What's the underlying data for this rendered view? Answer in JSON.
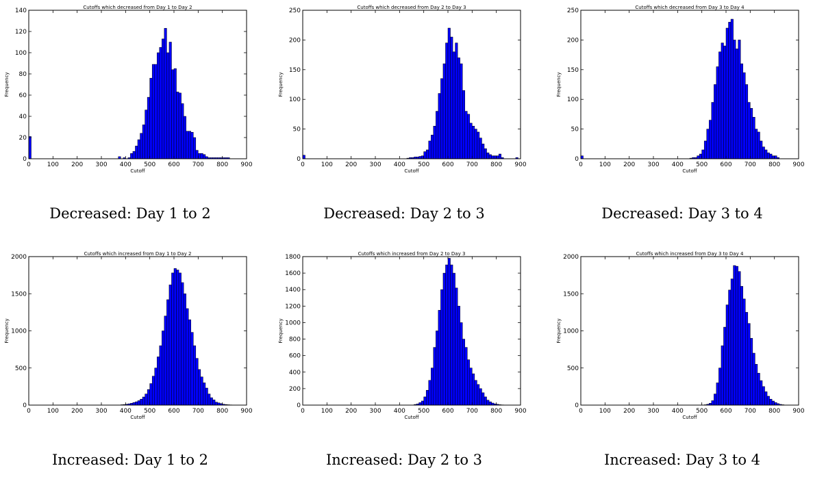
{
  "chart_data": [
    {
      "type": "bar",
      "title": "Cutoffs which decreased from Day 1 to Day 2",
      "xlabel": "Cutoff",
      "ylabel": "Frequency",
      "caption": "Decreased: Day 1 to 2",
      "xlim": [
        0,
        900
      ],
      "ylim": [
        0,
        140
      ],
      "xticks": [
        0,
        100,
        200,
        300,
        400,
        500,
        600,
        700,
        800,
        900
      ],
      "yticks": [
        0,
        20,
        40,
        60,
        80,
        100,
        120,
        140
      ],
      "bin_width": 10,
      "bin_starts": [
        0,
        370,
        390,
        410,
        420,
        430,
        440,
        450,
        460,
        470,
        480,
        490,
        500,
        510,
        520,
        530,
        540,
        550,
        560,
        570,
        580,
        590,
        600,
        610,
        620,
        630,
        640,
        650,
        660,
        670,
        680,
        690,
        700,
        710,
        720,
        730,
        740,
        750,
        760,
        770,
        780,
        790,
        800,
        810,
        820
      ],
      "values": [
        21,
        2,
        1,
        1,
        5,
        7,
        12,
        18,
        24,
        32,
        46,
        58,
        76,
        89,
        89,
        100,
        105,
        113,
        123,
        100,
        110,
        84,
        85,
        63,
        62,
        52,
        40,
        26,
        26,
        25,
        20,
        8,
        5,
        5,
        4,
        2,
        1,
        1,
        1,
        1,
        1,
        1,
        1,
        1,
        1
      ],
      "colors": {
        "bar": "#0000ff",
        "edge": "#000000"
      }
    },
    {
      "type": "bar",
      "title": "Cutoffs which decreased from Day 2 to Day 3",
      "xlabel": "Cutoff",
      "ylabel": "Frequency",
      "caption": "Decreased: Day 2 to 3",
      "xlim": [
        0,
        900
      ],
      "ylim": [
        0,
        250
      ],
      "xticks": [
        0,
        100,
        200,
        300,
        400,
        500,
        600,
        700,
        800,
        900
      ],
      "yticks": [
        0,
        50,
        100,
        150,
        200,
        250
      ],
      "bin_width": 10,
      "bin_starts": [
        0,
        430,
        440,
        450,
        460,
        470,
        480,
        490,
        500,
        510,
        520,
        530,
        540,
        550,
        560,
        570,
        580,
        590,
        600,
        610,
        620,
        630,
        640,
        650,
        660,
        670,
        680,
        690,
        700,
        710,
        720,
        730,
        740,
        750,
        760,
        770,
        780,
        790,
        800,
        810,
        820,
        880
      ],
      "values": [
        6,
        1,
        2,
        2,
        3,
        3,
        4,
        5,
        12,
        15,
        30,
        40,
        55,
        80,
        110,
        135,
        160,
        195,
        220,
        205,
        180,
        195,
        170,
        160,
        115,
        80,
        75,
        60,
        55,
        50,
        45,
        35,
        25,
        17,
        10,
        7,
        5,
        5,
        5,
        8,
        2,
        2
      ],
      "colors": {
        "bar": "#0000ff",
        "edge": "#000000"
      }
    },
    {
      "type": "bar",
      "title": "Cutoffs which decreased from Day 3 to Day 4",
      "xlabel": "Cutoff",
      "ylabel": "Frequency",
      "caption": "Decreased: Day 3 to 4",
      "xlim": [
        0,
        900
      ],
      "ylim": [
        0,
        250
      ],
      "xticks": [
        0,
        100,
        200,
        300,
        400,
        500,
        600,
        700,
        800,
        900
      ],
      "yticks": [
        0,
        50,
        100,
        150,
        200,
        250
      ],
      "bin_width": 10,
      "bin_starts": [
        0,
        450,
        460,
        470,
        480,
        490,
        500,
        510,
        520,
        530,
        540,
        550,
        560,
        570,
        580,
        590,
        600,
        610,
        620,
        630,
        640,
        650,
        660,
        670,
        680,
        690,
        700,
        710,
        720,
        730,
        740,
        750,
        760,
        770,
        780,
        790,
        800,
        810
      ],
      "values": [
        5,
        1,
        2,
        2,
        5,
        8,
        15,
        30,
        50,
        65,
        95,
        125,
        155,
        180,
        195,
        190,
        220,
        230,
        235,
        200,
        185,
        200,
        160,
        145,
        125,
        95,
        85,
        70,
        50,
        45,
        30,
        20,
        15,
        10,
        8,
        5,
        5,
        2
      ],
      "colors": {
        "bar": "#0000ff",
        "edge": "#000000"
      }
    },
    {
      "type": "bar",
      "title": "Cutoffs which increased from Day 1 to Day 2",
      "xlabel": "Cutoff",
      "ylabel": "Frequency",
      "caption": "Increased: Day 1 to 2",
      "xlim": [
        0,
        900
      ],
      "ylim": [
        0,
        2000
      ],
      "xticks": [
        0,
        100,
        200,
        300,
        400,
        500,
        600,
        700,
        800,
        900
      ],
      "yticks": [
        0,
        500,
        1000,
        1500,
        2000
      ],
      "bin_width": 10,
      "bin_starts": [
        380,
        390,
        400,
        410,
        420,
        430,
        440,
        450,
        460,
        470,
        480,
        490,
        500,
        510,
        520,
        530,
        540,
        550,
        560,
        570,
        580,
        590,
        600,
        610,
        620,
        630,
        640,
        650,
        660,
        670,
        680,
        690,
        700,
        710,
        720,
        730,
        740,
        750,
        760,
        770,
        780,
        790,
        800,
        810,
        820,
        830,
        840
      ],
      "values": [
        5,
        8,
        12,
        18,
        25,
        35,
        45,
        60,
        80,
        110,
        150,
        210,
        290,
        390,
        500,
        650,
        800,
        1000,
        1200,
        1420,
        1620,
        1780,
        1840,
        1820,
        1780,
        1650,
        1500,
        1300,
        1150,
        980,
        800,
        630,
        480,
        380,
        300,
        230,
        150,
        100,
        70,
        40,
        30,
        20,
        12,
        8,
        5,
        3,
        2
      ],
      "colors": {
        "bar": "#0000ff",
        "edge": "#000000"
      }
    },
    {
      "type": "bar",
      "title": "Cutoffs which increased from Day 2 to Day 3",
      "xlabel": "Cutoff",
      "ylabel": "Frequency",
      "caption": "Increased: Day 2 to 3",
      "xlim": [
        0,
        900
      ],
      "ylim": [
        0,
        1800
      ],
      "xticks": [
        0,
        100,
        200,
        300,
        400,
        500,
        600,
        700,
        800,
        900
      ],
      "yticks": [
        0,
        200,
        400,
        600,
        800,
        1000,
        1200,
        1400,
        1600,
        1800
      ],
      "bin_width": 10,
      "bin_starts": [
        460,
        470,
        480,
        490,
        500,
        510,
        520,
        530,
        540,
        550,
        560,
        570,
        580,
        590,
        600,
        610,
        620,
        630,
        640,
        650,
        660,
        670,
        680,
        690,
        700,
        710,
        720,
        730,
        740,
        750,
        760,
        770,
        780,
        790,
        800,
        810,
        820,
        830
      ],
      "values": [
        8,
        15,
        30,
        50,
        100,
        180,
        300,
        450,
        700,
        900,
        1150,
        1400,
        1600,
        1700,
        1780,
        1700,
        1600,
        1420,
        1200,
        1000,
        800,
        700,
        550,
        450,
        380,
        300,
        250,
        200,
        150,
        100,
        60,
        40,
        25,
        15,
        10,
        5,
        3,
        2
      ],
      "colors": {
        "bar": "#0000ff",
        "edge": "#000000"
      }
    },
    {
      "type": "bar",
      "title": "Cutoffs which increased from Day 3 to Day 4",
      "xlabel": "Cutoff",
      "ylabel": "Frequency",
      "caption": "Increased: Day 3 to 4",
      "xlim": [
        0,
        900
      ],
      "ylim": [
        0,
        2000
      ],
      "xticks": [
        0,
        100,
        200,
        300,
        400,
        500,
        600,
        700,
        800,
        900
      ],
      "yticks": [
        0,
        500,
        1000,
        1500,
        2000
      ],
      "bin_width": 10,
      "bin_starts": [
        500,
        510,
        520,
        530,
        540,
        550,
        560,
        570,
        580,
        590,
        600,
        610,
        620,
        630,
        640,
        650,
        660,
        670,
        680,
        690,
        700,
        710,
        720,
        730,
        740,
        750,
        760,
        770,
        780,
        790,
        800,
        810,
        820,
        830,
        840
      ],
      "values": [
        2,
        5,
        12,
        25,
        60,
        150,
        300,
        500,
        800,
        1050,
        1350,
        1550,
        1700,
        1880,
        1870,
        1800,
        1600,
        1430,
        1250,
        1100,
        900,
        700,
        550,
        430,
        330,
        250,
        180,
        120,
        80,
        55,
        35,
        20,
        10,
        5,
        2
      ],
      "colors": {
        "bar": "#0000ff",
        "edge": "#000000"
      }
    }
  ]
}
